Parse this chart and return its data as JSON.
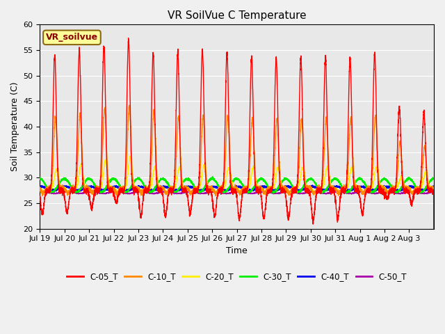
{
  "title": "VR SoilVue C Temperature",
  "xlabel": "Time",
  "ylabel": "Soil Temperature (C)",
  "ylim": [
    20,
    60
  ],
  "n_days": 16,
  "series": {
    "C-05_T": {
      "color": "#ff0000"
    },
    "C-10_T": {
      "color": "#ff8800"
    },
    "C-20_T": {
      "color": "#ffee00"
    },
    "C-30_T": {
      "color": "#00ee00"
    },
    "C-40_T": {
      "color": "#0000ee"
    },
    "C-50_T": {
      "color": "#aa00aa"
    }
  },
  "xtick_labels": [
    "Jul 19",
    "Jul 20",
    "Jul 21",
    "Jul 22",
    "Jul 23",
    "Jul 24",
    "Jul 25",
    "Jul 26",
    "Jul 27",
    "Jul 28",
    "Jul 29",
    "Jul 30",
    "Jul 31",
    "Aug 1",
    "Aug 2",
    "Aug 3"
  ],
  "annotation_text": "VR_soilvue",
  "annotation_bg": "#ffff99",
  "annotation_border": "#8b6914",
  "fig_bg": "#f0f0f0",
  "plot_bg": "#e8e8e8",
  "grid_color": "#ffffff"
}
